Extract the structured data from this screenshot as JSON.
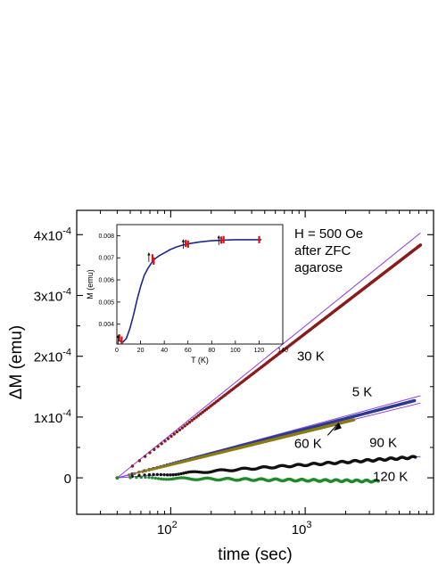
{
  "chart_data": [
    {
      "type": "scatter",
      "xlabel": "time (sec)",
      "ylabel": "ΔM (emu)",
      "x_scale": "log",
      "xlim": [
        20,
        9000
      ],
      "ylim": [
        -6e-05,
        0.00044
      ],
      "x_ticks": [
        {
          "value": 100,
          "label": "10",
          "exp": "2"
        },
        {
          "value": 1000,
          "label": "10",
          "exp": "3"
        }
      ],
      "y_ticks": [
        {
          "value": 0,
          "label": "0",
          "exp": ""
        },
        {
          "value": 0.0001,
          "label": "1x10",
          "exp": "-4"
        },
        {
          "value": 0.0002,
          "label": "2x10",
          "exp": "-4"
        },
        {
          "value": 0.0003,
          "label": "3x10",
          "exp": "-4"
        },
        {
          "value": 0.0004,
          "label": "4x10",
          "exp": "-4"
        }
      ],
      "annotations": {
        "legend_lines": [
          "H = 500 Oe",
          "after ZFC",
          "agarose"
        ]
      },
      "series": [
        {
          "name": "30 K",
          "color": "#8b1a1a",
          "x_start": 40,
          "x_end": 7200,
          "y_start": 0.0,
          "y_end": 0.000383,
          "label_at": [
            1100,
            0.000193
          ]
        },
        {
          "name": "5 K",
          "color": "#2b3a8f",
          "x_start": 40,
          "x_end": 6500,
          "y_start": 0.0,
          "y_end": 0.000127,
          "label_at": [
            2650,
            0.000134
          ]
        },
        {
          "name": "60 K",
          "color": "#8a7a10",
          "x_start": 40,
          "x_end": 2300,
          "y_start": 0.0,
          "y_end": 9.55e-05,
          "label_at": [
            1050,
            4.95e-05
          ]
        },
        {
          "name": "90 K",
          "color": "#111111",
          "x_start": 40,
          "x_end": 6600,
          "y_start": 0.0,
          "y_end": 3.4e-05,
          "label_at": [
            3800,
            5.05e-05
          ]
        },
        {
          "name": "120 K",
          "color": "#1f8a2a",
          "x_start": 40,
          "x_end": 3500,
          "y_start": 0.0,
          "y_end": -5.5e-06,
          "label_at": [
            4300,
            -5e-06
          ]
        }
      ],
      "fit_lines": {
        "color": "#8a3cf0",
        "lines": [
          {
            "x_start": 40,
            "x_end": 7200,
            "y_start": 0.0,
            "y_end": 0.000403
          },
          {
            "x_start": 40,
            "x_end": 7200,
            "y_start": 0.0,
            "y_end": 0.000123
          },
          {
            "x_start": 40,
            "x_end": 7200,
            "y_start": 0.0,
            "y_end": 0.000135
          },
          {
            "x_start": 40,
            "x_end": 7200,
            "y_start": 0.0,
            "y_end": 3.5e-05
          }
        ]
      }
    },
    {
      "type": "line",
      "xlabel": "T (K)",
      "ylabel": "M (emu)",
      "xlim": [
        0,
        140
      ],
      "ylim": [
        0.0031,
        0.0085
      ],
      "x_ticks": [
        0,
        20,
        40,
        60,
        80,
        100,
        120,
        140
      ],
      "y_ticks": [
        {
          "value": 0.004,
          "label": "0.004"
        },
        {
          "value": 0.005,
          "label": "0.005"
        },
        {
          "value": 0.006,
          "label": "0.006"
        },
        {
          "value": 0.007,
          "label": "0.007"
        },
        {
          "value": 0.008,
          "label": "0.008"
        }
      ],
      "curve": {
        "color": "#1a2a8c",
        "x": [
          2,
          5,
          8,
          11,
          14,
          17,
          20,
          23,
          26,
          29,
          32,
          36,
          40,
          45,
          50,
          55,
          60,
          70,
          80,
          90,
          100,
          110,
          122
        ],
        "y": [
          0.00325,
          0.00318,
          0.00335,
          0.0038,
          0.0044,
          0.0051,
          0.0057,
          0.0062,
          0.0065,
          0.00675,
          0.00695,
          0.0071,
          0.00722,
          0.00737,
          0.00748,
          0.00757,
          0.00763,
          0.00772,
          0.00777,
          0.0078,
          0.00782,
          0.00782,
          0.00782
        ]
      },
      "markers": {
        "color": "#e01010",
        "points": [
          {
            "t": 2,
            "m": 0.00338
          },
          {
            "t": 4,
            "m": 0.00328
          },
          {
            "t": 30,
            "m": 0.007
          },
          {
            "t": 31,
            "m": 0.00685
          },
          {
            "t": 58,
            "m": 0.00765
          },
          {
            "t": 60,
            "m": 0.00762
          },
          {
            "t": 88,
            "m": 0.0078
          },
          {
            "t": 90,
            "m": 0.00782
          },
          {
            "t": 120,
            "m": 0.00782
          }
        ]
      },
      "arrows": [
        {
          "t": 1,
          "m": 0.00332
        },
        {
          "t": 27,
          "m": 0.00705
        },
        {
          "t": 56,
          "m": 0.00765
        },
        {
          "t": 86,
          "m": 0.00782
        }
      ]
    }
  ]
}
